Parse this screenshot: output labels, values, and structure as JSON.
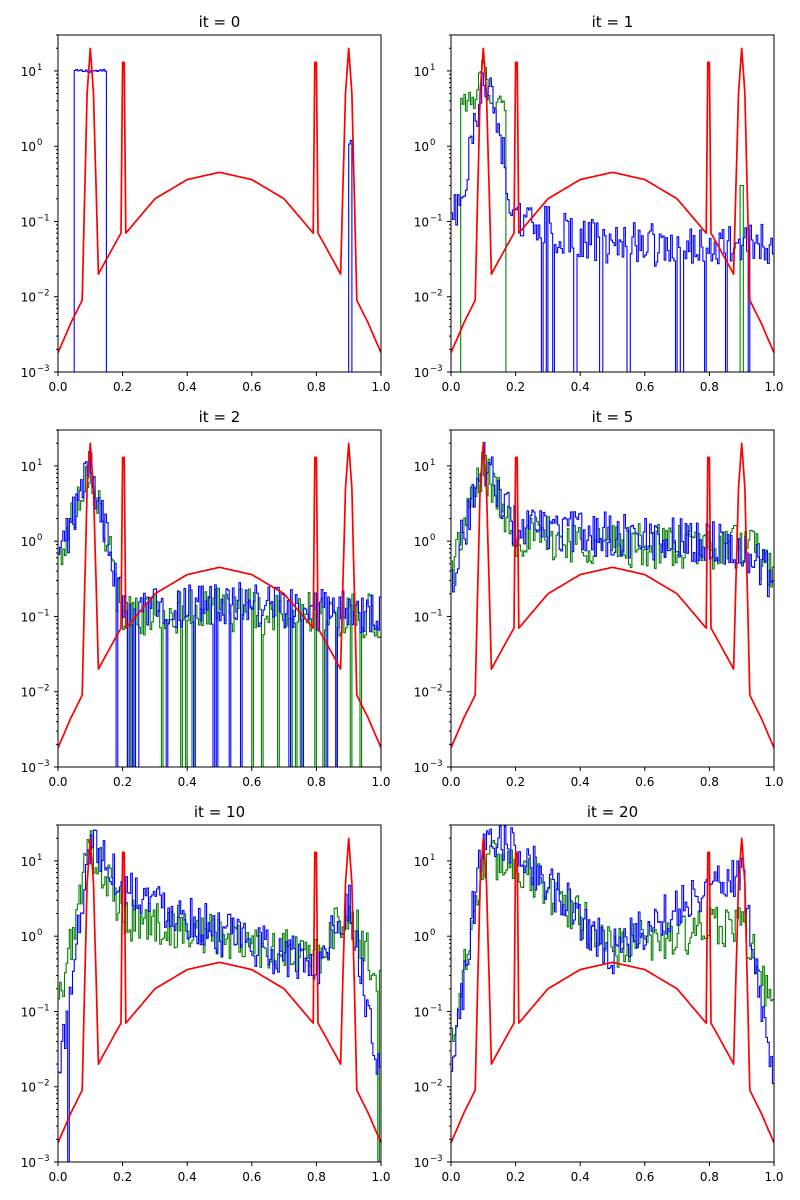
{
  "chart_data": {
    "type": "line",
    "layout": "3 rows x 2 columns of subplots",
    "axes": {
      "xlim": [
        0,
        1.0
      ],
      "xticks": [
        0.0,
        0.2,
        0.4,
        0.6,
        0.8,
        1.0
      ],
      "xtick_labels": [
        "0.0",
        "0.2",
        "0.4",
        "0.6",
        "0.8",
        "1.0"
      ],
      "yscale": "log",
      "ylim": [
        0.001,
        30
      ],
      "yticks": [
        0.001,
        0.01,
        0.1,
        1,
        10
      ],
      "ytick_labels": [
        "10",
        "10",
        "10",
        "10",
        "10"
      ],
      "ytick_exponents": [
        "−3",
        "−2",
        "−1",
        "0",
        "1"
      ],
      "grid": false,
      "legend": "none"
    },
    "colors": {
      "target": "#ff0000",
      "hist_a": "#0000ff",
      "hist_b": "#008000"
    },
    "target_function": {
      "description_points": "red curve, same in every panel",
      "x": [
        0.0,
        0.04,
        0.075,
        0.09,
        0.1,
        0.11,
        0.125,
        0.17,
        0.195,
        0.2,
        0.205,
        0.21,
        0.3,
        0.4,
        0.5,
        0.6,
        0.7,
        0.79,
        0.795,
        0.8,
        0.805,
        0.83,
        0.875,
        0.89,
        0.9,
        0.91,
        0.925,
        0.96,
        1.0
      ],
      "y": [
        0.0018,
        0.0045,
        0.009,
        5.0,
        20,
        5.0,
        0.02,
        0.045,
        0.07,
        13,
        13,
        0.07,
        0.2,
        0.36,
        0.45,
        0.36,
        0.2,
        0.07,
        13,
        13,
        0.07,
        0.045,
        0.02,
        5.0,
        20,
        5.0,
        0.009,
        0.0045,
        0.0018
      ]
    },
    "panels": [
      {
        "title": "it = 0",
        "series": [
          {
            "color": "blue",
            "x": [
              0.05,
              0.15
            ],
            "y": [
              10,
              10
            ],
            "kind": "box"
          },
          {
            "color": "blue",
            "x": [
              0.9,
              0.91
            ],
            "y": [
              0.8,
              1.2
            ],
            "kind": "spike"
          }
        ]
      },
      {
        "title": "it = 1",
        "series": [
          {
            "color": "green",
            "x": [
              0.07,
              0.1,
              0.13
            ],
            "y": [
              4,
              12,
              4
            ],
            "kind": "peak"
          },
          {
            "color": "blue",
            "x": [
              0.0,
              0.05,
              0.1,
              0.15,
              0.2,
              0.5,
              1.0
            ],
            "y": [
              0.1,
              0.4,
              11,
              1.5,
              0.1,
              0.05,
              0.05
            ],
            "kind": "noisy"
          }
        ]
      },
      {
        "title": "it = 2",
        "series": [
          {
            "color": "green",
            "x": [
              0.0,
              0.1,
              0.2,
              0.5,
              1.0
            ],
            "y": [
              0.5,
              12,
              0.1,
              0.12,
              0.1
            ],
            "kind": "noisy"
          },
          {
            "color": "blue",
            "x": [
              0.0,
              0.1,
              0.2,
              0.5,
              1.0
            ],
            "y": [
              0.5,
              11,
              0.12,
              0.15,
              0.1
            ],
            "kind": "noisy"
          }
        ]
      },
      {
        "title": "it = 5",
        "series": [
          {
            "color": "green",
            "x": [
              0.0,
              0.1,
              0.2,
              0.5,
              0.8,
              0.9,
              1.0
            ],
            "y": [
              0.4,
              10,
              1.2,
              0.9,
              0.8,
              1.0,
              0.4
            ],
            "kind": "noisy"
          },
          {
            "color": "blue",
            "x": [
              0.0,
              0.1,
              0.2,
              0.5,
              0.8,
              0.9,
              1.0
            ],
            "y": [
              0.3,
              12,
              1.5,
              1.2,
              1.0,
              0.8,
              0.3
            ],
            "kind": "noisy"
          }
        ]
      },
      {
        "title": "it = 10",
        "series": [
          {
            "color": "green",
            "x": [
              0.0,
              0.1,
              0.2,
              0.5,
              0.8,
              0.9,
              1.0
            ],
            "y": [
              0.1,
              18,
              1.8,
              1.0,
              0.5,
              2.2,
              0.2
            ],
            "kind": "noisy"
          },
          {
            "color": "blue",
            "x": [
              0.0,
              0.1,
              0.2,
              0.5,
              0.8,
              0.9,
              1.0
            ],
            "y": [
              0.01,
              20,
              5,
              1.1,
              0.4,
              3,
              0.01
            ],
            "kind": "noisy"
          }
        ]
      },
      {
        "title": "it = 20",
        "series": [
          {
            "color": "green",
            "x": [
              0.0,
              0.1,
              0.2,
              0.5,
              0.8,
              0.9,
              1.0
            ],
            "y": [
              0.04,
              10,
              10,
              0.7,
              1.2,
              1.6,
              0.1
            ],
            "kind": "noisy"
          },
          {
            "color": "blue",
            "x": [
              0.0,
              0.1,
              0.2,
              0.5,
              0.8,
              0.9,
              1.0
            ],
            "y": [
              0.01,
              25,
              15,
              0.6,
              5,
              7,
              0.01
            ],
            "kind": "noisy"
          }
        ]
      }
    ]
  }
}
